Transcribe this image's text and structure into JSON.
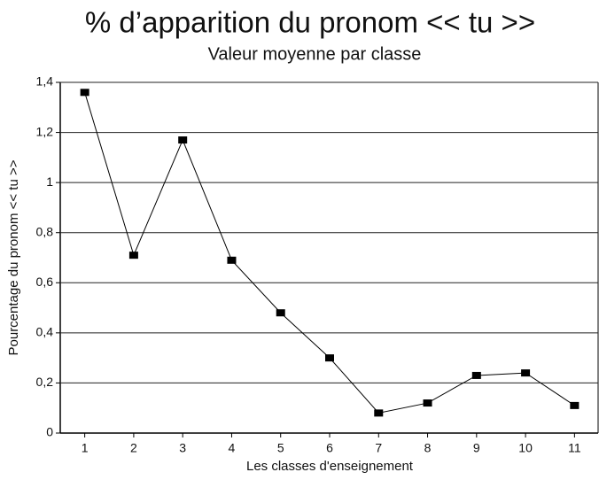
{
  "chart_data": {
    "type": "line",
    "title": "% d’apparition du pronom << tu >>",
    "subtitle": "Valeur moyenne par classe",
    "x_label": "Les classes d'enseignement",
    "y_label": "Pourcentage du pronom << tu >>",
    "categories": [
      "1",
      "2",
      "3",
      "4",
      "5",
      "6",
      "7",
      "8",
      "9",
      "10",
      "11"
    ],
    "values": [
      1.36,
      0.71,
      1.17,
      0.69,
      0.48,
      0.3,
      0.08,
      0.12,
      0.23,
      0.24,
      0.11
    ],
    "color": "#000000",
    "ylim": [
      0,
      1.4
    ],
    "yticks": [
      0,
      {
        "value": 0.2,
        "label": "0,2"
      },
      {
        "value": 0.4,
        "label": "0,4"
      },
      {
        "value": 0.6,
        "label": "0,6"
      },
      {
        "value": 0.8,
        "label": "0,8"
      },
      1,
      {
        "value": 1.2,
        "label": "1,2"
      },
      {
        "value": 1.4,
        "label": "1,4"
      }
    ],
    "grid": true
  }
}
